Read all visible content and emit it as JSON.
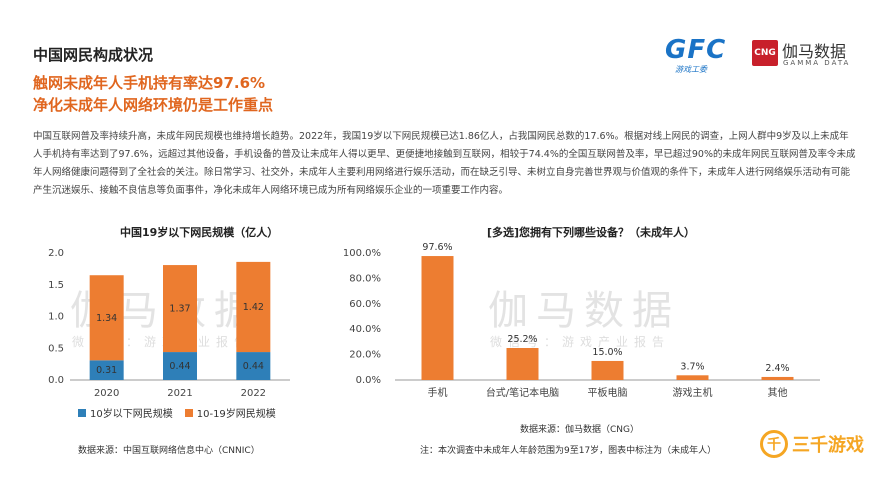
{
  "header": {
    "section_title": "中国网民构成状况",
    "headline_1": "触网未成年人手机持有率达97.6%",
    "headline_2": "净化未成年人网络环境仍是工作重点",
    "body": "中国互联网普及率持续升高，未成年网民规模也维持增长趋势。2022年，我国19岁以下网民规模已达1.86亿人，占我国网民总数的17.6%。根据对线上网民的调查，上网人群中9岁及以上未成年人手机持有率达到了97.6%，远超过其他设备，手机设备的普及让未成年人得以更早、更便捷地接触到互联网，相较于74.4%的全国互联网普及率，早已超过90%的未成年网民互联网普及率令未成年人网络健康问题得到了全社会的关注。除日常学习、社交外，未成年人主要利用网络进行娱乐活动，而在缺乏引导、未树立自身完善世界观与价值观的条件下，未成年人进行网络娱乐活动有可能产生沉迷娱乐、接触不良信息等负面事件，净化未成年人网络环境已成为所有网络娱乐企业的一项重要工作内容。"
  },
  "logos": {
    "gfc_letters": "GFC",
    "gfc_sub": "游戏工委",
    "cng_box": "CNG",
    "cng_name": "伽马数据",
    "cng_sub": "GAMMA DATA",
    "corner_circle": "千",
    "corner_text": "三千游戏"
  },
  "watermark": {
    "main": "伽马数据",
    "sub": "微信号：游戏产业报告"
  },
  "colors": {
    "accent": "#e0661f",
    "bar_orange": "#ed7d31",
    "bar_blue": "#2e7fb8"
  },
  "chart_data": [
    {
      "type": "bar",
      "stacked": true,
      "title": "中国19岁以下网民规模（亿人）",
      "categories": [
        "2020",
        "2021",
        "2022"
      ],
      "series": [
        {
          "name": "10岁以下网民规模",
          "values": [
            0.31,
            0.44,
            0.44
          ],
          "color": "#2e7fb8"
        },
        {
          "name": "10-19岁网民规模",
          "values": [
            1.34,
            1.37,
            1.42
          ],
          "color": "#ed7d31"
        }
      ],
      "ylim": [
        0,
        2.0
      ],
      "yticks": [
        "0.0",
        "0.5",
        "1.0",
        "1.5",
        "2.0"
      ],
      "legend": "bottom",
      "source": "数据来源：中国互联网络信息中心（CNNIC）"
    },
    {
      "type": "bar",
      "title": "[多选]您拥有下列哪些设备？（未成年人）",
      "categories": [
        "手机",
        "台式/笔记本电脑",
        "平板电脑",
        "游戏主机",
        "其他"
      ],
      "values": [
        97.6,
        25.2,
        15.0,
        3.7,
        2.4
      ],
      "value_labels": [
        "97.6%",
        "25.2%",
        "15.0%",
        "3.7%",
        "2.4%"
      ],
      "ylim": [
        0,
        100
      ],
      "yticks": [
        "0.0%",
        "20.0%",
        "40.0%",
        "60.0%",
        "80.0%",
        "100.0%"
      ],
      "color": "#ed7d31",
      "source": "数据来源：伽马数据（CNG）",
      "note": "注：本次调查中未成年人年龄范围为9至17岁，图表中标注为（未成年人）"
    }
  ]
}
